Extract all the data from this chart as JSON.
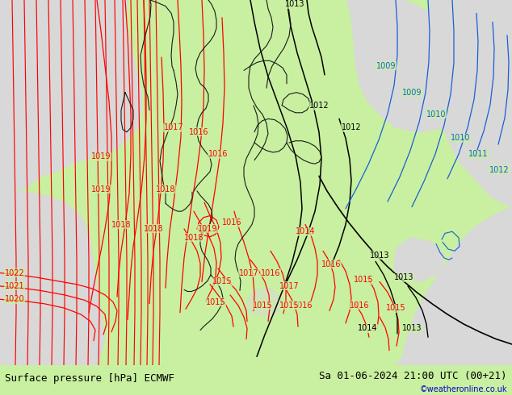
{
  "title_left": "Surface pressure [hPa] ECMWF",
  "title_right": "Sa 01-06-2024 21:00 UTC (00+21)",
  "copyright": "©weatheronline.co.uk",
  "bg_color": "#c8f0a0",
  "land_color": "#c8f0a0",
  "sea_color": "#d8d8d8",
  "border_color": "#1a1a1a",
  "isobar_red": "#ff0000",
  "isobar_black": "#000000",
  "isobar_blue": "#1a5fd4",
  "bottom_bar_color": "#c8c8c8",
  "text_color": "#000000",
  "text_color_blue": "#0000cc",
  "font_size_title": 9,
  "font_size_label": 7
}
